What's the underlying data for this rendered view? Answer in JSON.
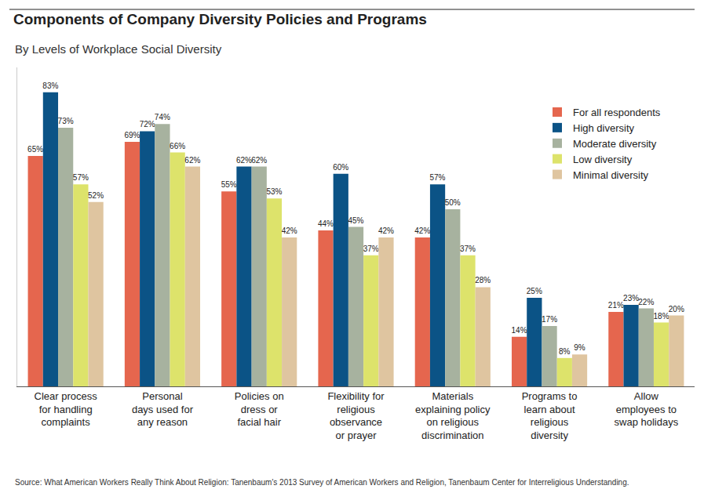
{
  "chart_data": {
    "type": "bar",
    "title": "Components of Company Diversity Policies and Programs",
    "subtitle": "By Levels of Workplace Social Diversity",
    "source": "Source: What American Workers Really Think About Religion: Tanenbaum's 2013 Survey of American Workers and Religion, Tanenbaum Center for Interreligious Understanding.",
    "categories": [
      [
        "Clear process",
        "for handling",
        "complaints"
      ],
      [
        "Personal",
        "days used for",
        "any reason"
      ],
      [
        "Policies on",
        "dress or",
        "facial hair"
      ],
      [
        "Flexibility for",
        "religious",
        "observance",
        "or prayer"
      ],
      [
        "Materials",
        "explaining policy",
        "on religious",
        "discrimination"
      ],
      [
        "Programs to",
        "learn about",
        "religious",
        "diversity"
      ],
      [
        "Allow",
        "employees to",
        "swap holidays"
      ]
    ],
    "series": [
      {
        "name": "For all respondents",
        "color": "#e5664e",
        "values": [
          65,
          69,
          55,
          44,
          42,
          14,
          21
        ],
        "value_labels": [
          "65%",
          "69%",
          "55%",
          "44%",
          "42%",
          "14%",
          "21%"
        ]
      },
      {
        "name": "High diversity",
        "color": "#0b5386",
        "values": [
          83,
          72,
          62,
          60,
          57,
          25,
          23
        ],
        "value_labels": [
          "83%",
          "72%",
          "62%",
          "60%",
          "57%",
          "25%",
          "23%"
        ]
      },
      {
        "name": "Moderate diversity",
        "color": "#a7b29f",
        "values": [
          73,
          74,
          62,
          45,
          50,
          17,
          22
        ],
        "value_labels": [
          "73%",
          "74%",
          "62%",
          "45%",
          "50%",
          "17%",
          "22%"
        ]
      },
      {
        "name": "Low diversity",
        "color": "#dde36b",
        "values": [
          57,
          66,
          53,
          37,
          37,
          8,
          18
        ],
        "value_labels": [
          "57%",
          "66%",
          "53%",
          "37%",
          "37%",
          "8%",
          "18%"
        ]
      },
      {
        "name": "Minimal diversity",
        "color": "#dfc5a0",
        "values": [
          52,
          62,
          42,
          42,
          28,
          9,
          20
        ],
        "value_labels": [
          "52%",
          "62%",
          "42%",
          "42%",
          "28%",
          "9%",
          "20%"
        ]
      }
    ],
    "ylim": [
      0,
      90
    ],
    "yticks": [],
    "grid": false,
    "legend": "top right",
    "data_labels": true,
    "tick_labels": "x"
  }
}
